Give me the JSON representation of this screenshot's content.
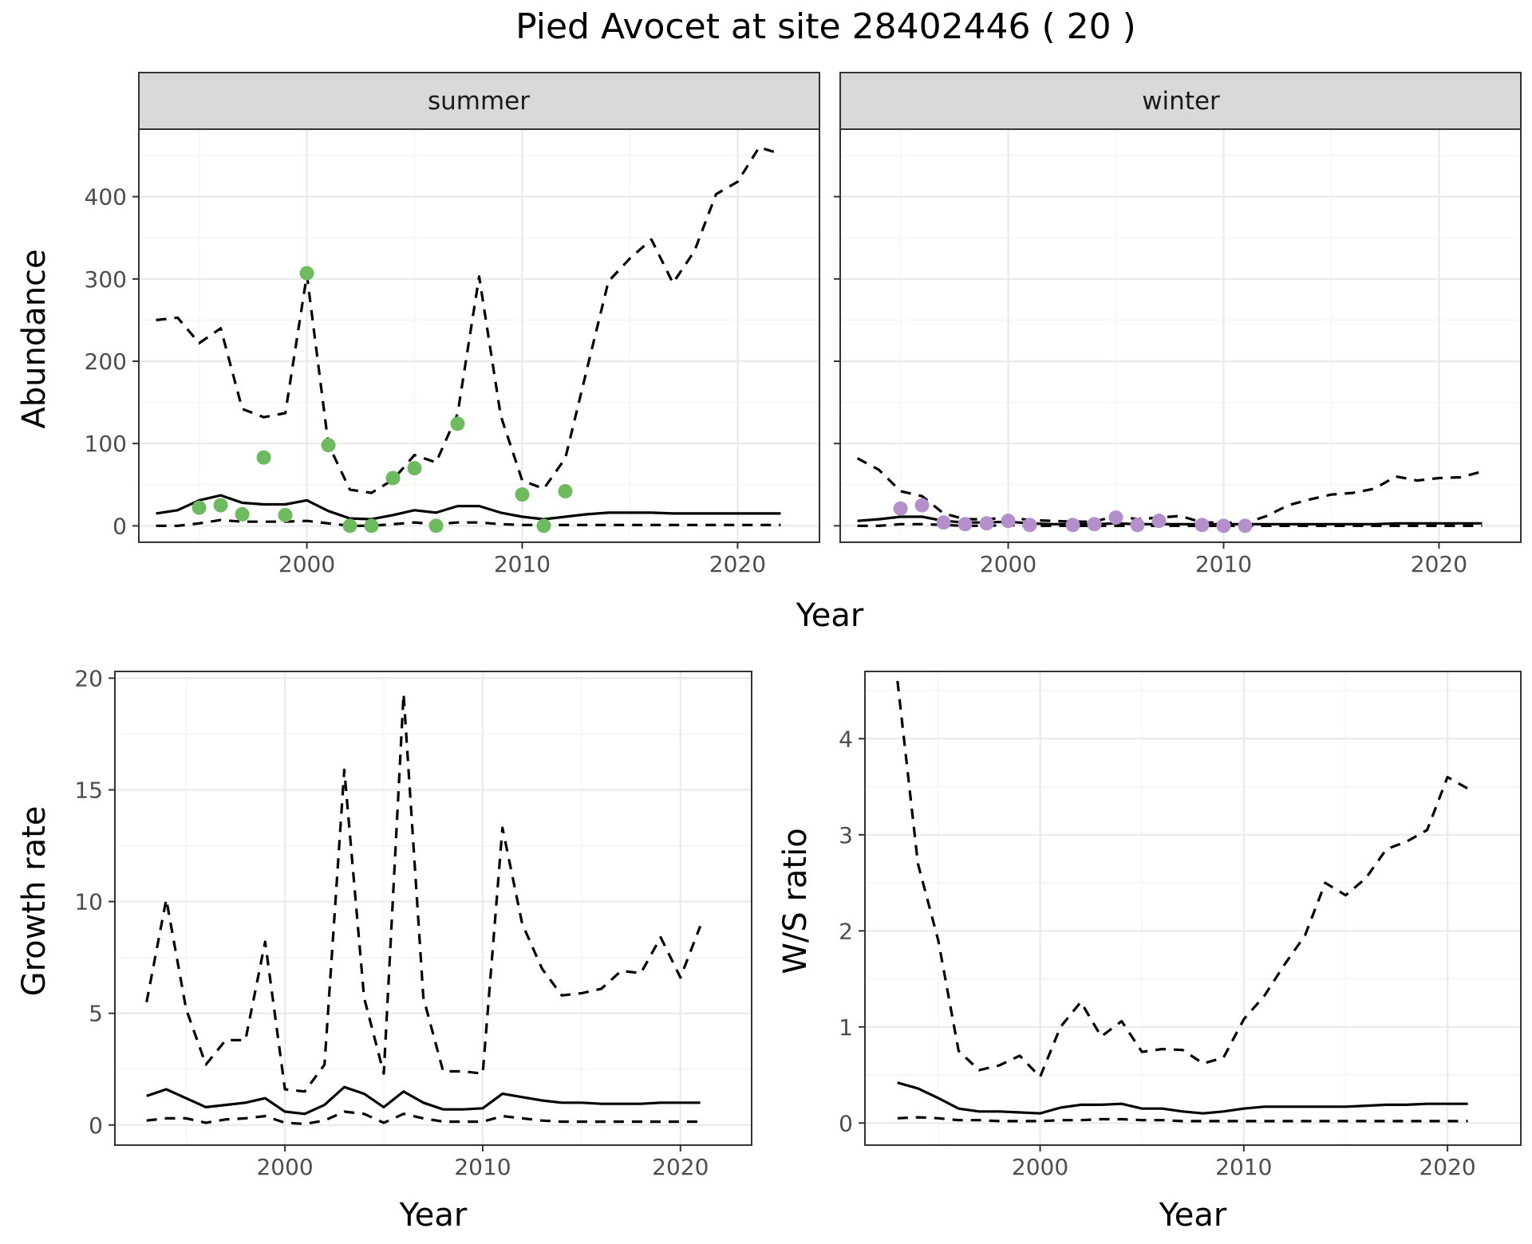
{
  "chart_data": {
    "title": "Pied Avocet at site 28402446 ( 20 )",
    "panels": [
      {
        "id": "abundance-summer",
        "type": "line",
        "strip": "summer",
        "ylabel": "Abundance",
        "xlabel": "Year",
        "xlim": [
          1992.2,
          2023.8
        ],
        "ylim": [
          -20,
          482
        ],
        "xticks": [
          2000,
          2010,
          2020
        ],
        "yticks": [
          0,
          100,
          200,
          300,
          400
        ],
        "grid": true,
        "point_color": "#6dbb5e",
        "mean": {
          "x": [
            1993,
            1994,
            1995,
            1996,
            1997,
            1998,
            1999,
            2000,
            2001,
            2002,
            2003,
            2004,
            2005,
            2006,
            2007,
            2008,
            2009,
            2010,
            2011,
            2012,
            2013,
            2014,
            2015,
            2016,
            2017,
            2018,
            2019,
            2020,
            2021,
            2022
          ],
          "y": [
            15,
            19,
            31,
            37,
            28,
            26,
            26,
            31,
            18,
            9,
            8,
            13,
            19,
            16,
            24,
            24,
            16,
            11,
            8,
            11,
            14,
            16,
            16,
            16,
            15,
            15,
            15,
            15,
            15,
            15
          ]
        },
        "lower": {
          "x": [
            1993,
            1994,
            1995,
            1996,
            1997,
            1998,
            1999,
            2000,
            2001,
            2002,
            2003,
            2004,
            2005,
            2006,
            2007,
            2008,
            2009,
            2010,
            2011,
            2012,
            2013,
            2014,
            2015,
            2016,
            2017,
            2018,
            2019,
            2020,
            2021,
            2022
          ],
          "y": [
            0,
            0,
            3,
            7,
            5,
            5,
            5,
            6,
            3,
            0,
            0,
            2,
            4,
            2,
            4,
            4,
            2,
            1,
            1,
            1,
            1,
            1,
            1,
            1,
            1,
            1,
            1,
            1,
            1,
            1
          ]
        },
        "upper": {
          "x": [
            1993,
            1994,
            1995,
            1996,
            1997,
            1998,
            1999,
            2000,
            2001,
            2002,
            2003,
            2004,
            2005,
            2006,
            2007,
            2008,
            2009,
            2010,
            2011,
            2012,
            2013,
            2014,
            2015,
            2016,
            2017,
            2018,
            2019,
            2020,
            2021,
            2022
          ],
          "y": [
            250,
            253,
            222,
            240,
            142,
            132,
            137,
            305,
            99,
            44,
            40,
            56,
            86,
            77,
            136,
            303,
            134,
            55,
            45,
            82,
            190,
            297,
            325,
            348,
            295,
            334,
            403,
            418,
            460,
            452
          ]
        },
        "points": {
          "x": [
            1995,
            1996,
            1997,
            1998,
            1999,
            2000,
            2001,
            2002,
            2003,
            2004,
            2005,
            2006,
            2007,
            2010,
            2011,
            2012
          ],
          "y": [
            22,
            25,
            14,
            83,
            13,
            307,
            98,
            0,
            0,
            58,
            70,
            0,
            124,
            38,
            0,
            42
          ]
        }
      },
      {
        "id": "abundance-winter",
        "type": "line",
        "strip": "winter",
        "xlabel": "Year",
        "xlim": [
          1992.2,
          2023.8
        ],
        "ylim": [
          -20,
          482
        ],
        "xticks": [
          2000,
          2010,
          2020
        ],
        "yticks": [
          0,
          100,
          200,
          300,
          400
        ],
        "grid": true,
        "point_color": "#b48fcc",
        "mean": {
          "x": [
            1993,
            1994,
            1995,
            1996,
            1997,
            1998,
            1999,
            2000,
            2001,
            2002,
            2003,
            2004,
            2005,
            2006,
            2007,
            2008,
            2009,
            2010,
            2011,
            2012,
            2013,
            2014,
            2015,
            2016,
            2017,
            2018,
            2019,
            2020,
            2021,
            2022
          ],
          "y": [
            6,
            8,
            11,
            11,
            6,
            4,
            4,
            5,
            3,
            2,
            2,
            2,
            3,
            2,
            2,
            2,
            2,
            2,
            2,
            2,
            2,
            2,
            2,
            2,
            2,
            3,
            3,
            3,
            3,
            3
          ]
        },
        "lower": {
          "x": [
            1993,
            1994,
            1995,
            1996,
            1997,
            1998,
            1999,
            2000,
            2001,
            2002,
            2003,
            2004,
            2005,
            2006,
            2007,
            2008,
            2009,
            2010,
            2011,
            2012,
            2013,
            2014,
            2015,
            2016,
            2017,
            2018,
            2019,
            2020,
            2021,
            2022
          ],
          "y": [
            0,
            0,
            2,
            2,
            1,
            0,
            0,
            1,
            0,
            0,
            0,
            0,
            0,
            0,
            0,
            0,
            0,
            0,
            0,
            0,
            0,
            0,
            0,
            0,
            0,
            0,
            0,
            0,
            0,
            0
          ]
        },
        "upper": {
          "x": [
            1993,
            1994,
            1995,
            1996,
            1997,
            1998,
            1999,
            2000,
            2001,
            2002,
            2003,
            2004,
            2005,
            2006,
            2007,
            2008,
            2009,
            2010,
            2011,
            2012,
            2013,
            2014,
            2015,
            2016,
            2017,
            2018,
            2019,
            2020,
            2021,
            2022
          ],
          "y": [
            82,
            68,
            42,
            36,
            15,
            8,
            8,
            10,
            7,
            6,
            5,
            5,
            12,
            8,
            10,
            12,
            4,
            4,
            3,
            12,
            25,
            32,
            38,
            40,
            45,
            60,
            55,
            58,
            59,
            66
          ]
        },
        "points": {
          "x": [
            1995,
            1996,
            1997,
            1998,
            1999,
            2000,
            2001,
            2003,
            2004,
            2005,
            2006,
            2007,
            2009,
            2010,
            2011
          ],
          "y": [
            21,
            25,
            4,
            2,
            3,
            6,
            1,
            1,
            2,
            10,
            1,
            6,
            1,
            0,
            0
          ]
        }
      },
      {
        "id": "growth-rate",
        "type": "line",
        "ylabel": "Growth rate",
        "xlabel": "Year",
        "xlim": [
          1991.4,
          2023.6
        ],
        "ylim": [
          -0.9,
          20.3
        ],
        "xticks": [
          2000,
          2010,
          2020
        ],
        "yticks": [
          0,
          5,
          10,
          15,
          20
        ],
        "grid": true,
        "mean": {
          "x": [
            1993,
            1994,
            1995,
            1996,
            1997,
            1998,
            1999,
            2000,
            2001,
            2002,
            2003,
            2004,
            2005,
            2006,
            2007,
            2008,
            2009,
            2010,
            2011,
            2012,
            2013,
            2014,
            2015,
            2016,
            2017,
            2018,
            2019,
            2020,
            2021
          ],
          "y": [
            1.3,
            1.6,
            1.2,
            0.8,
            0.9,
            1.0,
            1.2,
            0.6,
            0.5,
            0.9,
            1.7,
            1.4,
            0.8,
            1.5,
            1.0,
            0.7,
            0.7,
            0.75,
            1.4,
            1.25,
            1.1,
            1.0,
            1.0,
            0.95,
            0.95,
            0.95,
            1.0,
            1.0,
            1.0
          ]
        },
        "lower": {
          "x": [
            1993,
            1994,
            1995,
            1996,
            1997,
            1998,
            1999,
            2000,
            2001,
            2002,
            2003,
            2004,
            2005,
            2006,
            2007,
            2008,
            2009,
            2010,
            2011,
            2012,
            2013,
            2014,
            2015,
            2016,
            2017,
            2018,
            2019,
            2020,
            2021
          ],
          "y": [
            0.2,
            0.3,
            0.3,
            0.1,
            0.25,
            0.3,
            0.4,
            0.1,
            0.05,
            0.2,
            0.6,
            0.5,
            0.1,
            0.5,
            0.3,
            0.15,
            0.15,
            0.15,
            0.4,
            0.3,
            0.2,
            0.15,
            0.15,
            0.15,
            0.15,
            0.15,
            0.15,
            0.15,
            0.15
          ]
        },
        "upper": {
          "x": [
            1993,
            1994,
            1995,
            1996,
            1997,
            1998,
            1999,
            2000,
            2001,
            2002,
            2003,
            2004,
            2005,
            2006,
            2007,
            2008,
            2009,
            2010,
            2011,
            2012,
            2013,
            2014,
            2015,
            2016,
            2017,
            2018,
            2019,
            2020,
            2021
          ],
          "y": [
            5.5,
            10.1,
            5.2,
            2.7,
            3.8,
            3.8,
            8.2,
            1.6,
            1.5,
            2.7,
            15.9,
            5.7,
            2.3,
            19.3,
            5.7,
            2.4,
            2.4,
            2.3,
            13.3,
            9.0,
            7.0,
            5.8,
            5.9,
            6.1,
            6.9,
            6.8,
            8.4,
            6.6,
            8.9
          ]
        }
      },
      {
        "id": "ws-ratio",
        "type": "line",
        "ylabel": "W/S ratio",
        "xlabel": "Year",
        "xlim": [
          1991.4,
          2023.6
        ],
        "ylim": [
          -0.23,
          4.7
        ],
        "xticks": [
          2000,
          2010,
          2020
        ],
        "yticks": [
          0,
          1,
          2,
          3,
          4
        ],
        "grid": true,
        "mean": {
          "x": [
            1993,
            1994,
            1995,
            1996,
            1997,
            1998,
            1999,
            2000,
            2001,
            2002,
            2003,
            2004,
            2005,
            2006,
            2007,
            2008,
            2009,
            2010,
            2011,
            2012,
            2013,
            2014,
            2015,
            2016,
            2017,
            2018,
            2019,
            2020,
            2021
          ],
          "y": [
            0.42,
            0.36,
            0.26,
            0.15,
            0.12,
            0.12,
            0.11,
            0.1,
            0.16,
            0.19,
            0.19,
            0.2,
            0.15,
            0.15,
            0.12,
            0.1,
            0.12,
            0.15,
            0.17,
            0.17,
            0.17,
            0.17,
            0.17,
            0.18,
            0.19,
            0.19,
            0.2,
            0.2,
            0.2
          ]
        },
        "lower": {
          "x": [
            1993,
            1994,
            1995,
            1996,
            1997,
            1998,
            1999,
            2000,
            2001,
            2002,
            2003,
            2004,
            2005,
            2006,
            2007,
            2008,
            2009,
            2010,
            2011,
            2012,
            2013,
            2014,
            2015,
            2016,
            2017,
            2018,
            2019,
            2020,
            2021
          ],
          "y": [
            0.05,
            0.06,
            0.05,
            0.03,
            0.03,
            0.02,
            0.02,
            0.02,
            0.03,
            0.03,
            0.04,
            0.04,
            0.03,
            0.03,
            0.02,
            0.02,
            0.02,
            0.02,
            0.02,
            0.02,
            0.02,
            0.02,
            0.02,
            0.02,
            0.02,
            0.02,
            0.02,
            0.02,
            0.02
          ]
        },
        "upper": {
          "x": [
            1993,
            1994,
            1995,
            1996,
            1997,
            1998,
            1999,
            2000,
            2001,
            2002,
            2003,
            2004,
            2005,
            2006,
            2007,
            2008,
            2009,
            2010,
            2011,
            2012,
            2013,
            2014,
            2015,
            2016,
            2017,
            2018,
            2019,
            2020,
            2021
          ],
          "y": [
            4.6,
            2.7,
            1.9,
            0.75,
            0.55,
            0.6,
            0.7,
            0.48,
            1.0,
            1.26,
            0.9,
            1.06,
            0.74,
            0.77,
            0.76,
            0.62,
            0.68,
            1.08,
            1.32,
            1.65,
            1.95,
            2.5,
            2.37,
            2.55,
            2.85,
            2.93,
            3.05,
            3.6,
            3.48
          ]
        }
      }
    ]
  }
}
